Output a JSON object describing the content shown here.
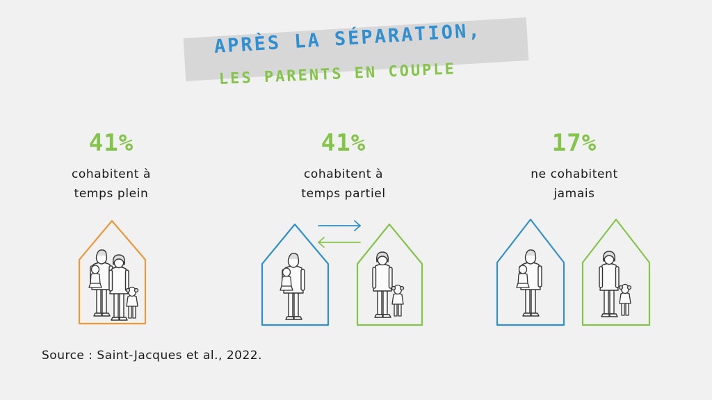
{
  "title": {
    "line1": "APRÈS LA SÉPARATION,",
    "line2": "LES PARENTS EN COUPLE"
  },
  "columns": [
    {
      "percent": "41%",
      "line1": "cohabitent à",
      "line2": "temps plein"
    },
    {
      "percent": "41%",
      "line1": "cohabitent à",
      "line2": "temps partiel"
    },
    {
      "percent": "17%",
      "line1": "ne cohabitent",
      "line2": "jamais"
    }
  ],
  "source": "Source : Saint-Jacques et al., 2022.",
  "colors": {
    "background": "#f1f1f1",
    "blue": "#2f8fd0",
    "green": "#84c44a",
    "orange": "#f0973a",
    "title_band": "#d7d7d7"
  },
  "icons": [
    "house-icon",
    "family-icon",
    "father-child-icon",
    "mother-child-icon",
    "arrow-right-icon",
    "arrow-left-icon"
  ]
}
